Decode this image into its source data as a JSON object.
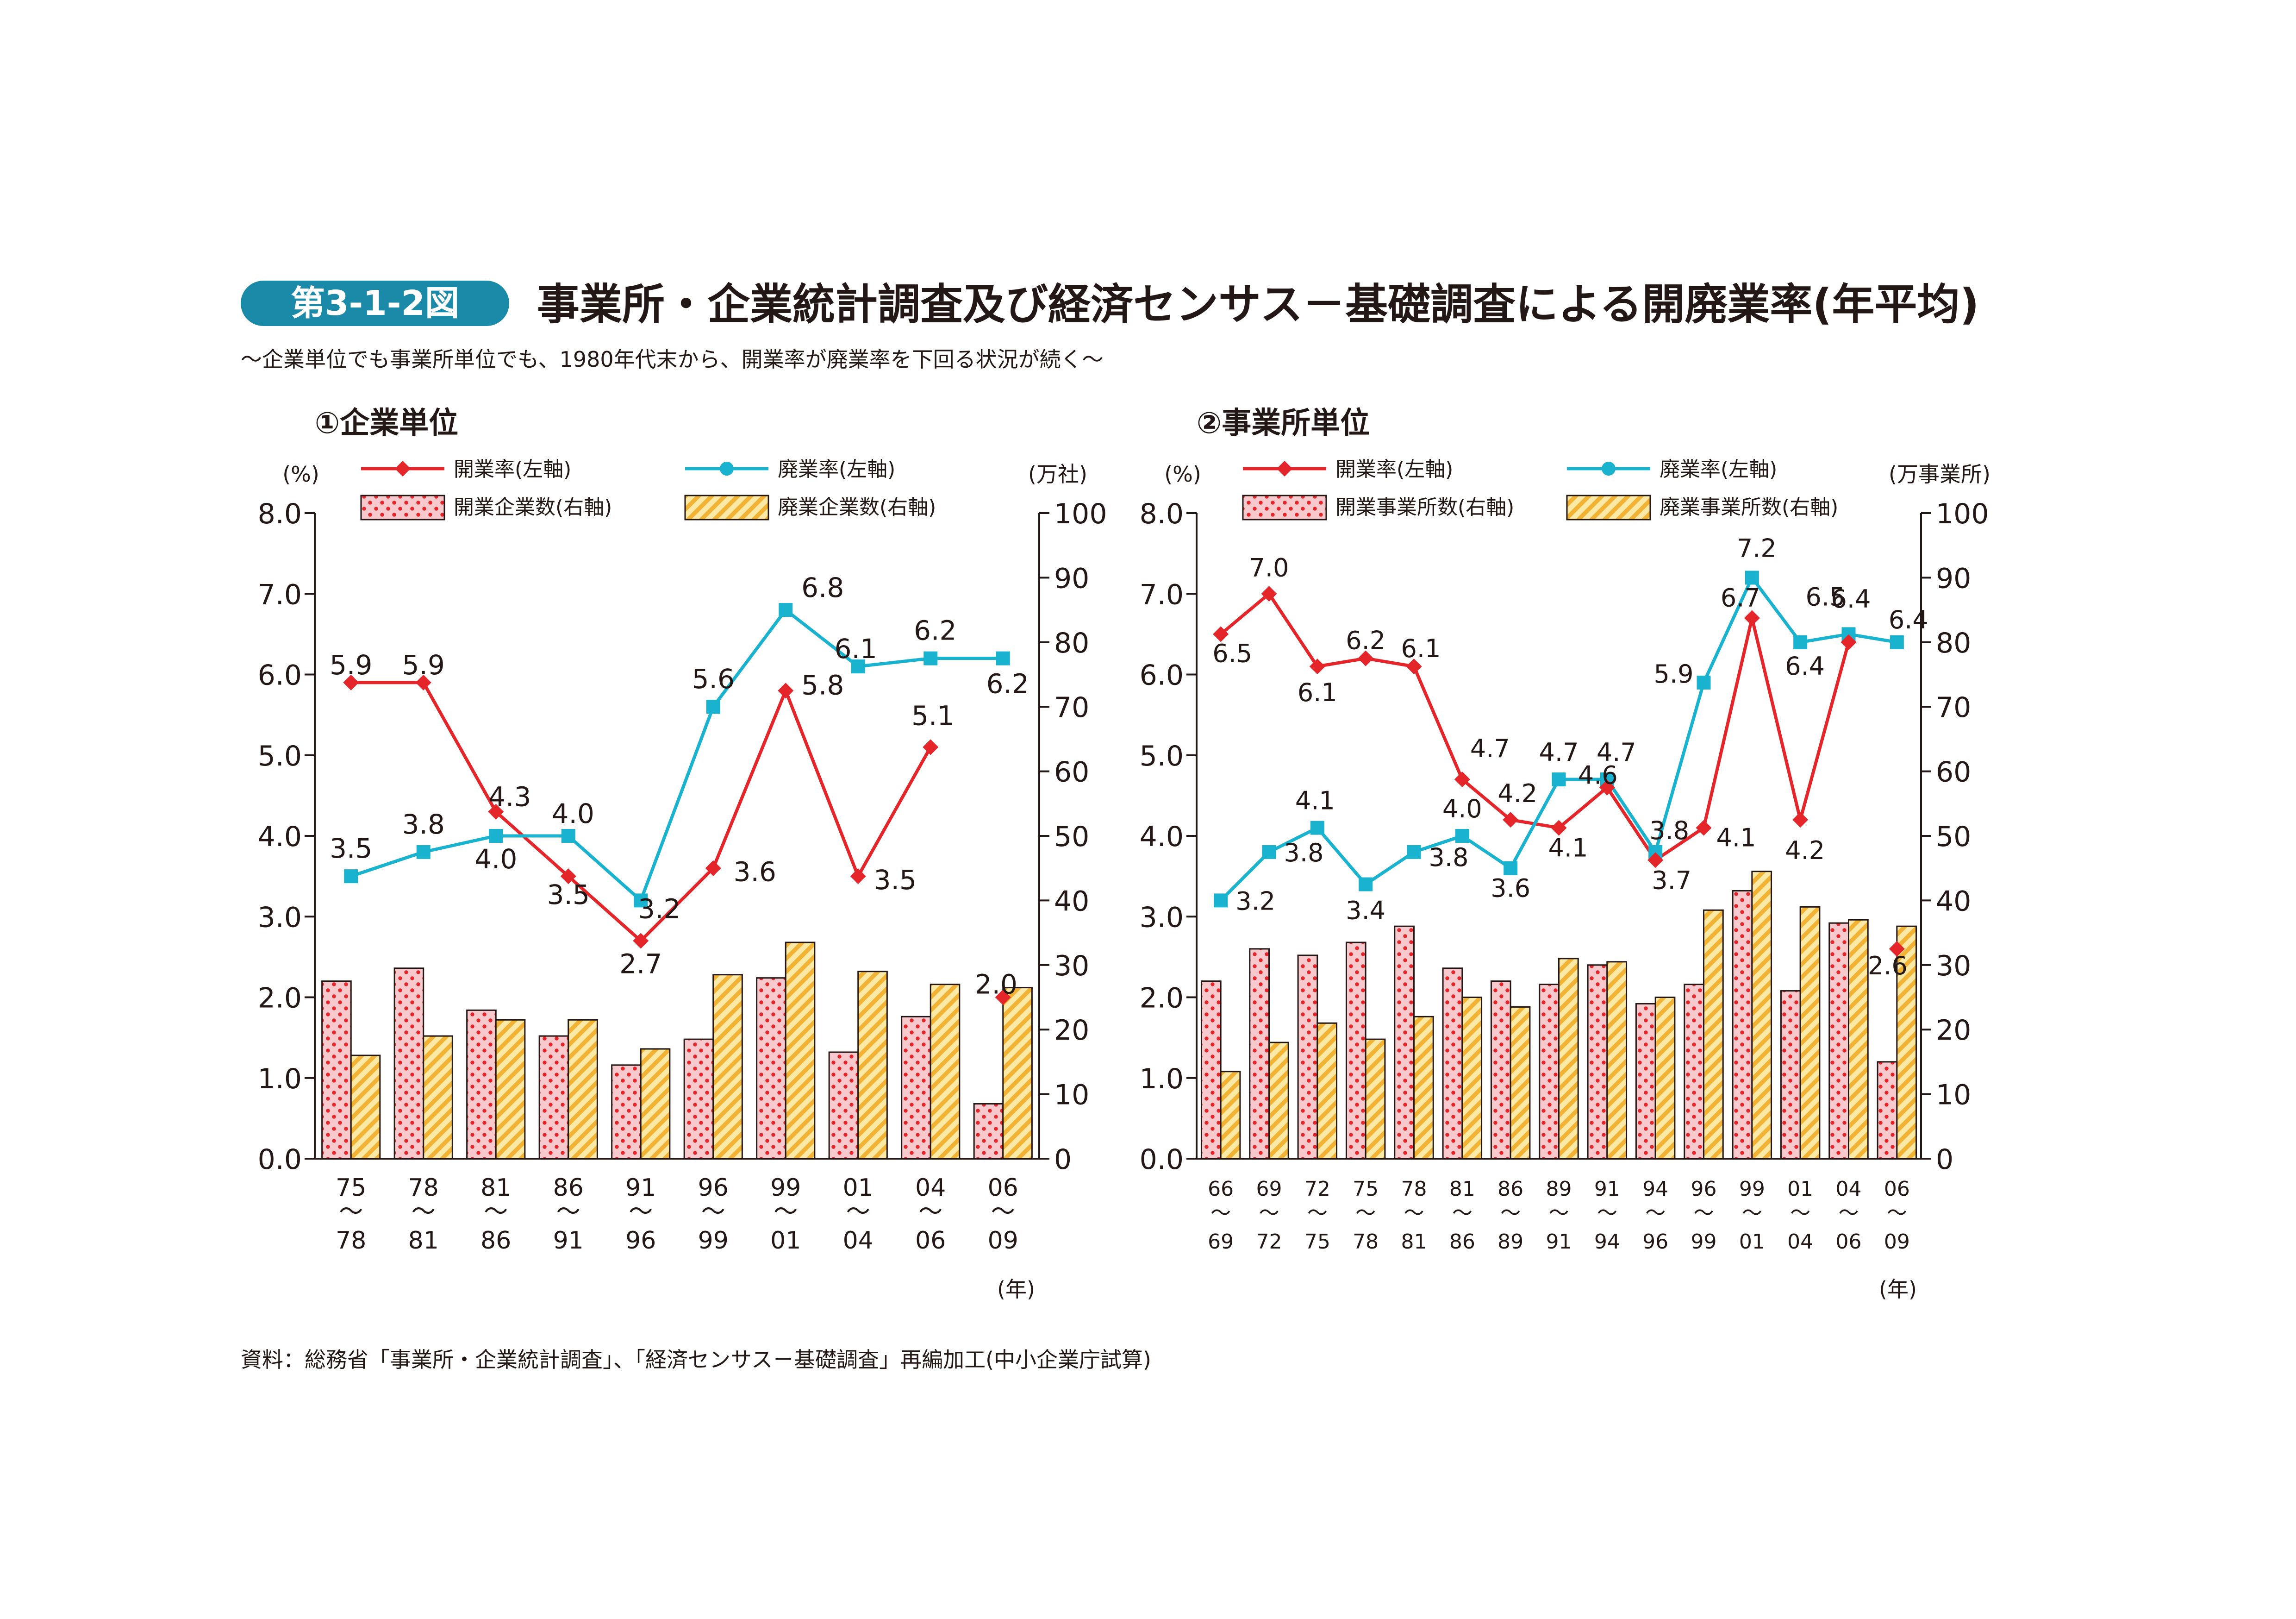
{
  "header": {
    "badge": "第3-1-2図",
    "title": "事業所・企業統計調査及び経済センサス－基礎調査による開廃業率(年平均)",
    "subtitle": "～企業単位でも事業所単位でも、1980年代末から、開業率が廃業率を下回る状況が続く～"
  },
  "source": "資料：総務省「事業所・企業統計調査」、「経済センサス－基礎調査」再編加工(中小企業庁試算)",
  "colors": {
    "open_line": "#e4262b",
    "close_line": "#1ab3cf",
    "open_bar": "#f7c8cc",
    "open_dot": "#e4262b",
    "close_bar": "#fde9a6",
    "close_stripe": "#f2b233",
    "axis": "#231815",
    "badge": "#1a8aa8"
  },
  "chart_data": [
    {
      "type": "bar+line",
      "title": "①企業単位",
      "left_unit": "(%)",
      "right_unit": "(万社)",
      "x_unit": "(年)",
      "ylim_left": [
        0,
        8
      ],
      "ylim_right": [
        0,
        100
      ],
      "left_ticks": [
        "0.0",
        "1.0",
        "2.0",
        "3.0",
        "4.0",
        "5.0",
        "6.0",
        "7.0",
        "8.0"
      ],
      "right_ticks": [
        "0",
        "10",
        "20",
        "30",
        "40",
        "50",
        "60",
        "70",
        "80",
        "90",
        "100"
      ],
      "legend": {
        "open_rate": "開業率(左軸)",
        "close_rate": "廃業率(左軸)",
        "open_count": "開業企業数(右軸)",
        "close_count": "廃業企業数(右軸)"
      },
      "categories": [
        {
          "from": "75",
          "to": "78"
        },
        {
          "from": "78",
          "to": "81"
        },
        {
          "from": "81",
          "to": "86"
        },
        {
          "from": "86",
          "to": "91"
        },
        {
          "from": "91",
          "to": "96"
        },
        {
          "from": "96",
          "to": "99"
        },
        {
          "from": "99",
          "to": "01"
        },
        {
          "from": "01",
          "to": "04"
        },
        {
          "from": "04",
          "to": "06"
        },
        {
          "from": "06",
          "to": "09"
        }
      ],
      "open_rate": [
        5.9,
        5.9,
        4.3,
        3.5,
        2.7,
        3.6,
        5.8,
        3.5,
        5.1,
        2.0
      ],
      "open_rate_labels": [
        "5.9",
        "5.9",
        "4.3",
        "3.5",
        "2.7",
        "3.6",
        "5.8",
        "3.5",
        "5.1",
        "2.0"
      ],
      "close_rate": [
        3.5,
        3.8,
        4.0,
        4.0,
        3.2,
        5.6,
        6.8,
        6.1,
        6.2,
        6.2
      ],
      "close_rate_labels": [
        "3.5",
        "3.8",
        "4.0",
        "4.0",
        "3.2",
        "5.6",
        "6.8",
        "6.1",
        "6.2",
        "6.2"
      ],
      "open_count": [
        27.5,
        29.5,
        23,
        19,
        14.5,
        18.5,
        28,
        16.5,
        22,
        8.5
      ],
      "close_count": [
        16,
        19,
        21.5,
        21.5,
        17,
        28.5,
        33.5,
        29,
        27,
        26.5
      ]
    },
    {
      "type": "bar+line",
      "title": "②事業所単位",
      "left_unit": "(%)",
      "right_unit": "(万事業所)",
      "x_unit": "(年)",
      "ylim_left": [
        0,
        8
      ],
      "ylim_right": [
        0,
        100
      ],
      "left_ticks": [
        "0.0",
        "1.0",
        "2.0",
        "3.0",
        "4.0",
        "5.0",
        "6.0",
        "7.0",
        "8.0"
      ],
      "right_ticks": [
        "0",
        "10",
        "20",
        "30",
        "40",
        "50",
        "60",
        "70",
        "80",
        "90",
        "100"
      ],
      "legend": {
        "open_rate": "開業率(左軸)",
        "close_rate": "廃業率(左軸)",
        "open_count": "開業事業所数(右軸)",
        "close_count": "廃業事業所数(右軸)"
      },
      "categories": [
        {
          "from": "66",
          "to": "69"
        },
        {
          "from": "69",
          "to": "72"
        },
        {
          "from": "72",
          "to": "75"
        },
        {
          "from": "75",
          "to": "78"
        },
        {
          "from": "78",
          "to": "81"
        },
        {
          "from": "81",
          "to": "86"
        },
        {
          "from": "86",
          "to": "89"
        },
        {
          "from": "89",
          "to": "91"
        },
        {
          "from": "91",
          "to": "94"
        },
        {
          "from": "94",
          "to": "96"
        },
        {
          "from": "96",
          "to": "99"
        },
        {
          "from": "99",
          "to": "01"
        },
        {
          "from": "01",
          "to": "04"
        },
        {
          "from": "04",
          "to": "06"
        },
        {
          "from": "06",
          "to": "09"
        }
      ],
      "open_rate": [
        6.5,
        7.0,
        6.1,
        6.2,
        6.1,
        4.7,
        4.2,
        4.1,
        4.6,
        3.7,
        4.1,
        6.7,
        4.2,
        6.4,
        2.6
      ],
      "open_rate_labels": [
        "6.5",
        "7.0",
        "6.1",
        "6.2",
        "6.1",
        "4.7",
        "4.2",
        "4.1",
        "4.6",
        "3.7",
        "4.1",
        "6.7",
        "4.2",
        "6.4",
        "2.6"
      ],
      "close_rate": [
        3.2,
        3.8,
        4.1,
        3.4,
        3.8,
        4.0,
        3.6,
        4.7,
        4.7,
        3.8,
        5.9,
        7.2,
        6.4,
        6.5,
        6.4
      ],
      "close_rate_labels": [
        "3.2",
        "3.8",
        "4.1",
        "3.4",
        "3.8",
        "4.0",
        "3.6",
        "4.7",
        "4.7",
        "3.8",
        "5.9",
        "7.2",
        "6.4",
        "6.5",
        "6.4"
      ],
      "open_count": [
        27.5,
        32.5,
        31.5,
        33.5,
        36,
        29.5,
        27.5,
        27,
        30,
        24,
        27,
        41.5,
        26,
        36.5,
        15
      ],
      "close_count": [
        13.5,
        18,
        21,
        18.5,
        22,
        25,
        23.5,
        31,
        30.5,
        25,
        38.5,
        44.5,
        39,
        37,
        36
      ]
    }
  ]
}
